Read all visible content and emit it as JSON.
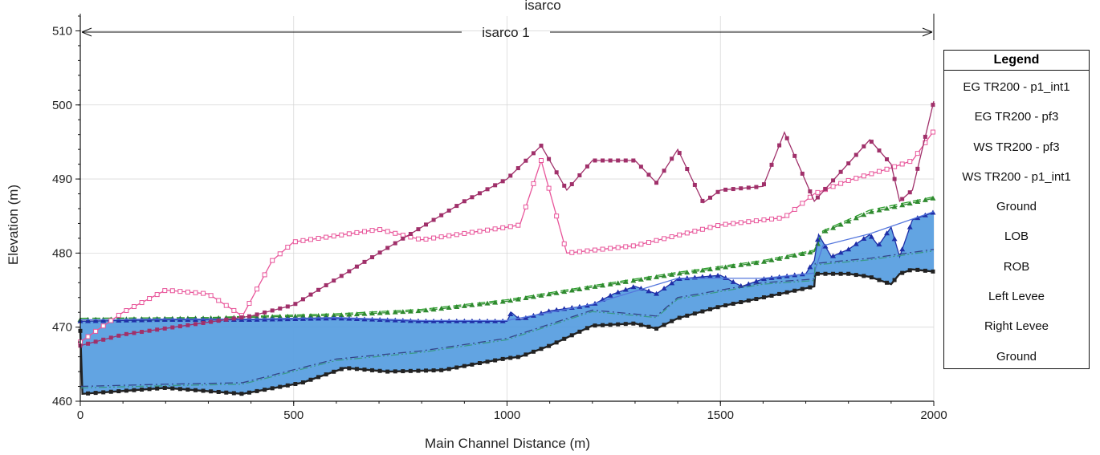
{
  "chart_data": {
    "type": "line",
    "title": "isarco",
    "reach_label": "isarco 1",
    "xlabel": "Main Channel Distance (m)",
    "ylabel": "Elevation (m)",
    "xlim": [
      0,
      2000
    ],
    "ylim": [
      460,
      512
    ],
    "x_ticks": [
      "0",
      "500",
      "1000",
      "1500",
      "2000"
    ],
    "x_tick_values": [
      0,
      500,
      1000,
      1500,
      2000
    ],
    "y_ticks": [
      "460",
      "470",
      "480",
      "490",
      "500",
      "510"
    ],
    "y_tick_values": [
      460,
      470,
      480,
      490,
      500,
      510
    ],
    "grid": true,
    "legend_position": "right",
    "legend_title": "Legend",
    "series": [
      {
        "name": "EG  TR200 - p1_int1",
        "color": "#2ca02c",
        "style": "dash",
        "x": [
          0,
          300,
          600,
          800,
          1000,
          1200,
          1400,
          1600,
          1720,
          1740,
          1850,
          2000
        ],
        "y": [
          471.2,
          471.3,
          471.8,
          472.4,
          473.7,
          475.6,
          477.4,
          479.0,
          480.4,
          483.0,
          485.8,
          487.6
        ]
      },
      {
        "name": "EG  TR200 - pf3",
        "color": "#2f8a2f",
        "style": "dash-triangle",
        "x": [
          0,
          300,
          600,
          800,
          1000,
          1200,
          1400,
          1600,
          1720,
          1740,
          1850,
          2000
        ],
        "y": [
          471.0,
          471.2,
          471.6,
          472.2,
          473.5,
          475.4,
          477.2,
          478.8,
          480.2,
          482.8,
          485.5,
          487.4
        ]
      },
      {
        "name": "WS  TR200 - pf3",
        "color": "#1f2fa8",
        "style": "line-triangle",
        "x": [
          0,
          200,
          400,
          600,
          800,
          1000,
          1010,
          1030,
          1100,
          1200,
          1250,
          1300,
          1350,
          1400,
          1500,
          1550,
          1600,
          1700,
          1720,
          1730,
          1760,
          1800,
          1850,
          1870,
          1900,
          1920,
          1950,
          2000
        ],
        "y": [
          470.8,
          471.0,
          471.0,
          471.2,
          470.8,
          470.8,
          472.0,
          471.0,
          472.2,
          473.0,
          474.5,
          475.5,
          474.5,
          476.5,
          477.0,
          475.5,
          476.5,
          477.2,
          479.0,
          482.5,
          479.5,
          480.5,
          482.5,
          481.0,
          483.5,
          479.5,
          484.5,
          485.5
        ]
      },
      {
        "name": "WS  TR200 - p1_int1",
        "color": "#5577dd",
        "style": "line",
        "x": [
          0,
          200,
          400,
          600,
          800,
          1000,
          1200,
          1400,
          1600,
          1720,
          1740,
          1850,
          2000
        ],
        "y": [
          471.0,
          471.1,
          471.1,
          471.3,
          470.9,
          470.9,
          473.1,
          476.6,
          476.6,
          477.3,
          481.0,
          482.6,
          485.6
        ]
      },
      {
        "name": "Ground",
        "color": "#222222",
        "style": "line-square",
        "x": [
          0,
          5,
          200,
          380,
          520,
          620,
          720,
          850,
          950,
          1000,
          1030,
          1100,
          1200,
          1300,
          1350,
          1400,
          1500,
          1600,
          1720,
          1722,
          1800,
          1850,
          1900,
          1920,
          1950,
          2000
        ],
        "y": [
          469.5,
          461.0,
          461.8,
          461.0,
          462.5,
          464.5,
          464.0,
          464.2,
          465.3,
          465.8,
          466.0,
          467.5,
          470.2,
          470.5,
          469.8,
          471.2,
          472.8,
          474.0,
          475.5,
          477.2,
          477.2,
          476.8,
          475.8,
          477.2,
          477.8,
          477.5
        ]
      },
      {
        "name": "LOB",
        "color": "#334488",
        "style": "dash-dot",
        "x": [
          0,
          200,
          380,
          600,
          800,
          1000,
          1200,
          1350,
          1400,
          1600,
          1720,
          1722,
          1850,
          2000
        ],
        "y": [
          462.0,
          462.3,
          462.5,
          465.7,
          466.8,
          468.5,
          472.3,
          471.5,
          474.0,
          476.0,
          476.5,
          478.6,
          479.3,
          480.5
        ]
      },
      {
        "name": "ROB",
        "color": "#3a9a8a",
        "style": "dash-dot-dot",
        "x": [
          0,
          200,
          380,
          600,
          800,
          1000,
          1200,
          1350,
          1400,
          1600,
          1720,
          1722,
          1850,
          2000
        ],
        "y": [
          461.8,
          462.1,
          462.3,
          465.5,
          466.6,
          468.3,
          472.1,
          471.3,
          473.8,
          475.8,
          476.3,
          478.4,
          479.1,
          480.3
        ]
      },
      {
        "name": "Left Levee",
        "color": "#e8559a",
        "style": "line-open-square",
        "x": [
          0,
          100,
          200,
          300,
          380,
          450,
          500,
          700,
          800,
          1000,
          1030,
          1080,
          1140,
          1300,
          1500,
          1650,
          1720,
          1800,
          1900,
          1950,
          2000
        ],
        "y": [
          468.0,
          472.0,
          475.0,
          474.5,
          471.5,
          479.0,
          481.5,
          483.2,
          481.8,
          483.5,
          483.8,
          492.5,
          480.0,
          481.0,
          483.8,
          484.8,
          488.0,
          489.8,
          491.5,
          492.5,
          496.5
        ]
      },
      {
        "name": "Right Levee",
        "color": "#a0306a",
        "style": "line-square",
        "x": [
          0,
          100,
          400,
          500,
          900,
          1000,
          1080,
          1140,
          1200,
          1300,
          1350,
          1400,
          1460,
          1500,
          1600,
          1650,
          1720,
          1850,
          1900,
          1920,
          1950,
          2000
        ],
        "y": [
          467.5,
          469.0,
          471.5,
          473.0,
          487.0,
          490.0,
          494.5,
          488.5,
          492.5,
          492.5,
          489.5,
          494.0,
          486.8,
          488.5,
          489.0,
          496.3,
          487.0,
          495.3,
          492.0,
          487.0,
          488.5,
          500.5
        ]
      }
    ],
    "legend_entries": [
      {
        "label": "EG  TR200 - p1_int1",
        "color": "#2ca02c",
        "dash": "12,6"
      },
      {
        "label": "EG  TR200 - pf3",
        "color": "#2f8a2f",
        "dash": "10,5"
      },
      {
        "label": "WS  TR200 - pf3",
        "color": "#1f2fa8",
        "dash": ""
      },
      {
        "label": "WS  TR200 - p1_int1",
        "color": "#5577dd",
        "dash": ""
      },
      {
        "label": "Ground",
        "color": "#222222",
        "dash": ""
      },
      {
        "label": "LOB",
        "color": "#334488",
        "dash": "10,4,2,4"
      },
      {
        "label": "ROB",
        "color": "#3a9a8a",
        "dash": "10,3,2,3,2,3"
      },
      {
        "label": "Left Levee",
        "color": "#e8559a",
        "dash": ""
      },
      {
        "label": "Right Levee",
        "color": "#a0306a",
        "dash": ""
      },
      {
        "label": "Ground",
        "color": "#111111",
        "dash": ""
      }
    ]
  },
  "colors": {
    "water_fill": "#5a9fe0",
    "grid": "#d8d8d8"
  }
}
